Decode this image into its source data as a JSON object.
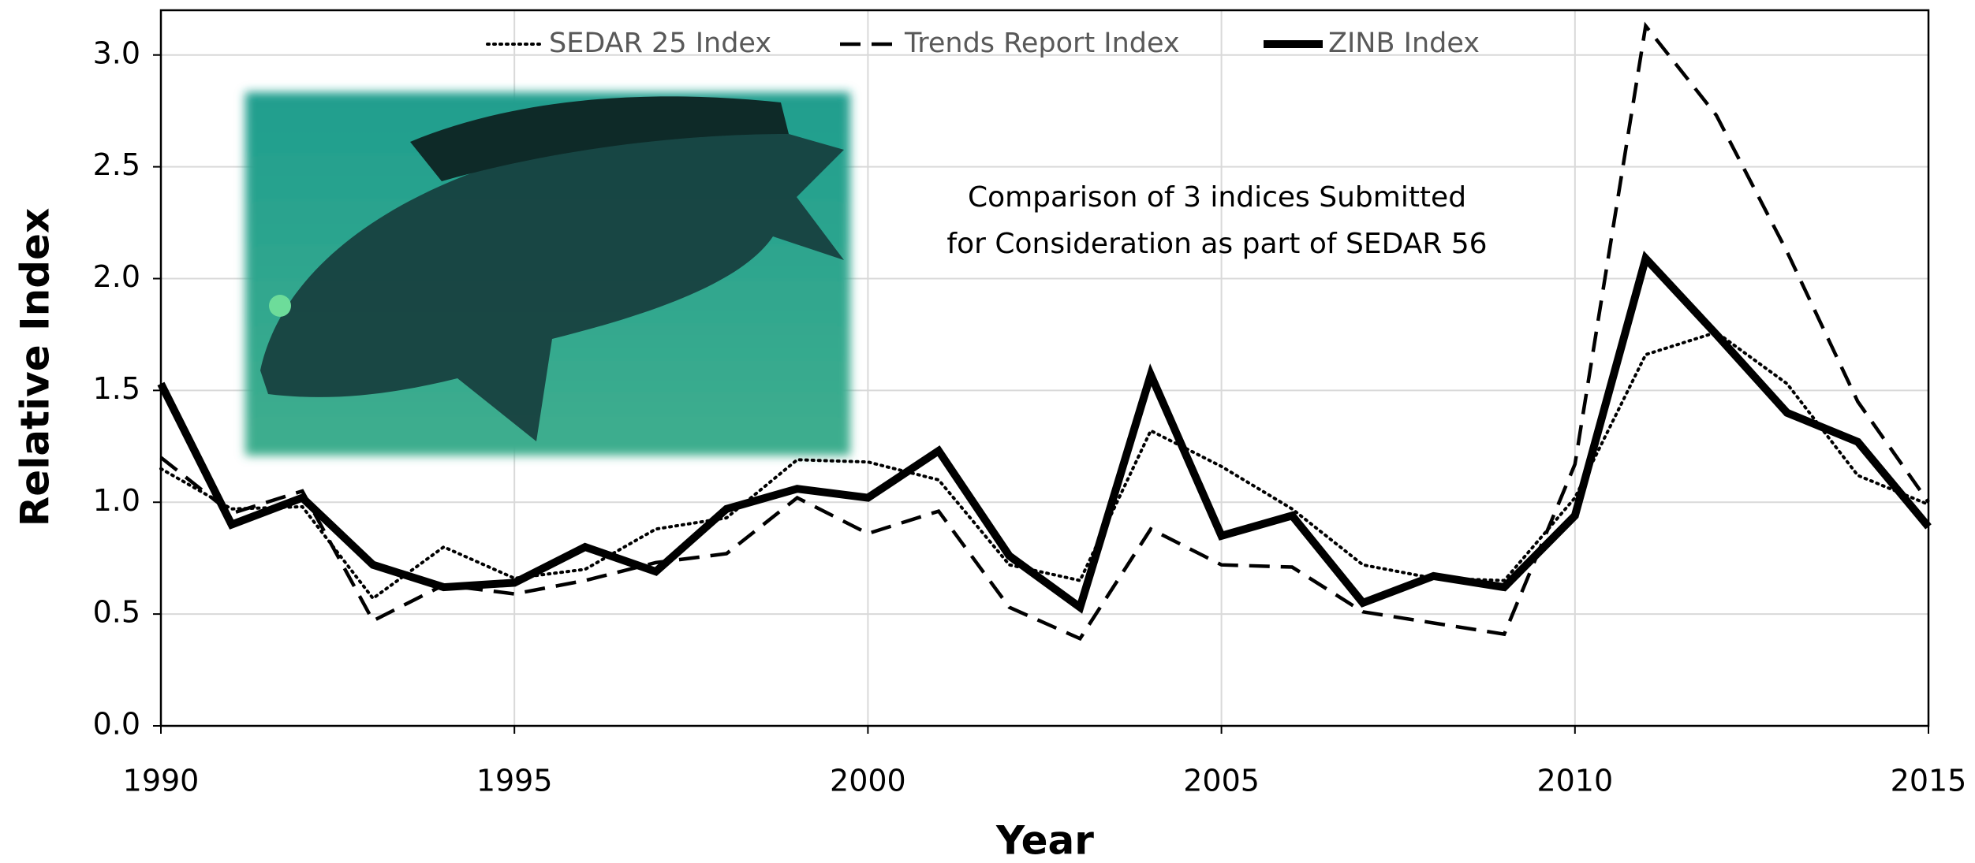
{
  "chart_data": {
    "type": "line",
    "x_label": "Year",
    "y_label": "Relative Index",
    "annotation": [
      "Comparison of 3 indices Submitted",
      "for Consideration as part of SEDAR 56"
    ],
    "x": [
      1990,
      1991,
      1992,
      1993,
      1994,
      1995,
      1996,
      1997,
      1998,
      1999,
      2000,
      2001,
      2002,
      2003,
      2004,
      2005,
      2006,
      2007,
      2008,
      2009,
      2010,
      2011,
      2012,
      2013,
      2014,
      2015
    ],
    "series": [
      {
        "name": "SEDAR 25 Index",
        "color": "#000000",
        "style": "dotted",
        "values": [
          1.15,
          0.97,
          0.98,
          0.57,
          0.8,
          0.66,
          0.7,
          0.88,
          0.93,
          1.19,
          1.18,
          1.1,
          0.72,
          0.65,
          1.32,
          1.16,
          0.97,
          0.72,
          0.66,
          0.65,
          1.02,
          1.66,
          1.76,
          1.53,
          1.12,
          0.99
        ]
      },
      {
        "name": "Trends Report Index",
        "color": "#000000",
        "style": "dashed",
        "values": [
          1.2,
          0.95,
          1.05,
          0.47,
          0.63,
          0.59,
          0.65,
          0.73,
          0.77,
          1.02,
          0.86,
          0.96,
          0.53,
          0.39,
          0.88,
          0.72,
          0.71,
          0.51,
          0.46,
          0.41,
          1.17,
          3.13,
          2.73,
          2.12,
          1.45,
          1.0
        ]
      },
      {
        "name": "ZINB Index",
        "color": "#000000",
        "style": "solid",
        "values": [
          1.53,
          0.9,
          1.02,
          0.72,
          0.62,
          0.64,
          0.8,
          0.69,
          0.97,
          1.06,
          1.02,
          1.23,
          0.76,
          0.53,
          1.57,
          0.85,
          0.94,
          0.55,
          0.67,
          0.62,
          0.94,
          2.09,
          1.75,
          1.4,
          1.27,
          0.89
        ]
      }
    ],
    "xlim": [
      1990,
      2015
    ],
    "xticks": [
      1990,
      1995,
      2000,
      2005,
      2010,
      2015
    ],
    "ylim": [
      0,
      3.2
    ],
    "yticks": [
      {
        "value": 0,
        "label": "0.0"
      },
      0.5,
      {
        "value": 1,
        "label": "1.0"
      },
      1.5,
      {
        "value": 2,
        "label": "2.0"
      },
      2.5,
      {
        "value": 3,
        "label": "3.0"
      }
    ],
    "grid": true,
    "legend": "top"
  }
}
